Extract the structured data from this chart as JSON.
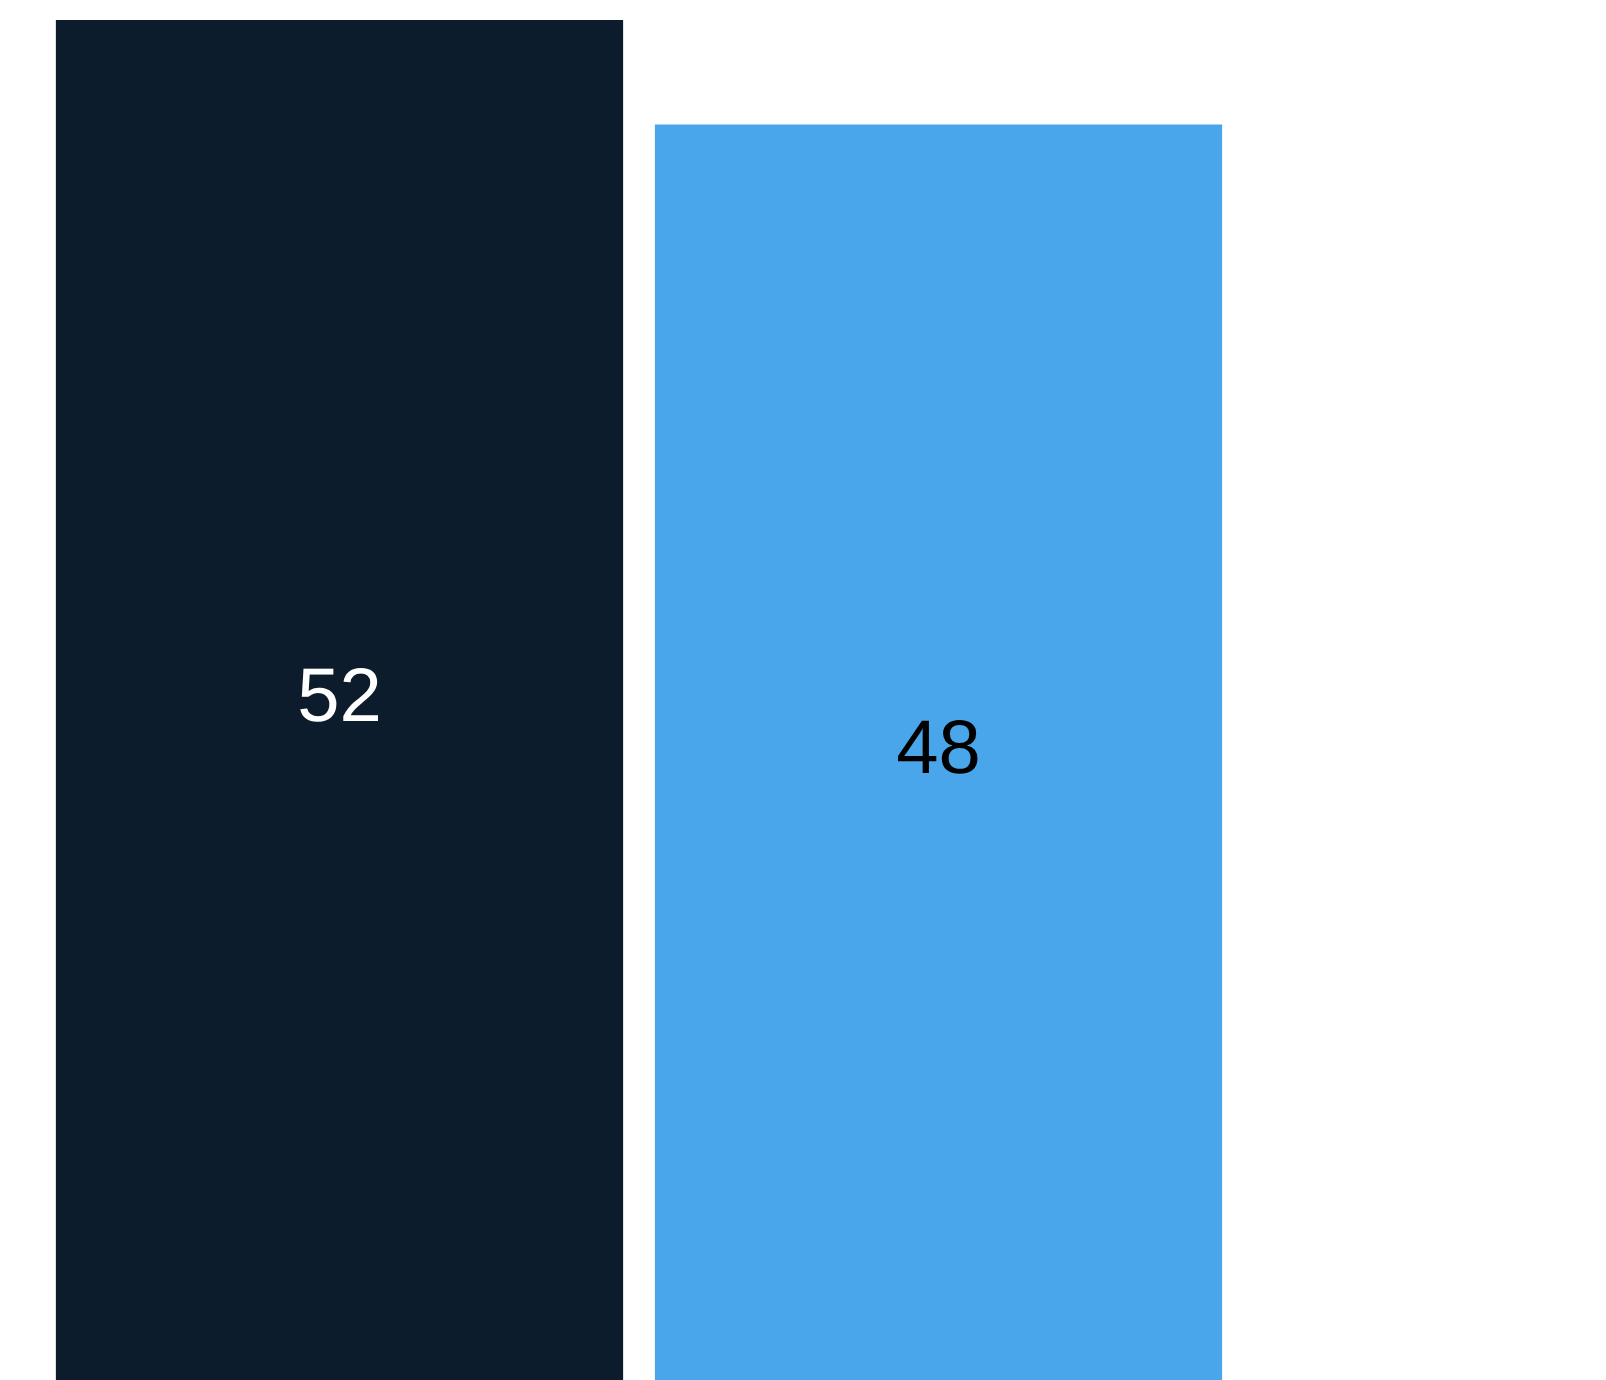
{
  "chart_data": {
    "type": "bar",
    "categories": [
      null,
      null
    ],
    "values": [
      52,
      48
    ],
    "colors": [
      "#0c1c2c",
      "#4aa6ea"
    ],
    "data_labels": true
  }
}
